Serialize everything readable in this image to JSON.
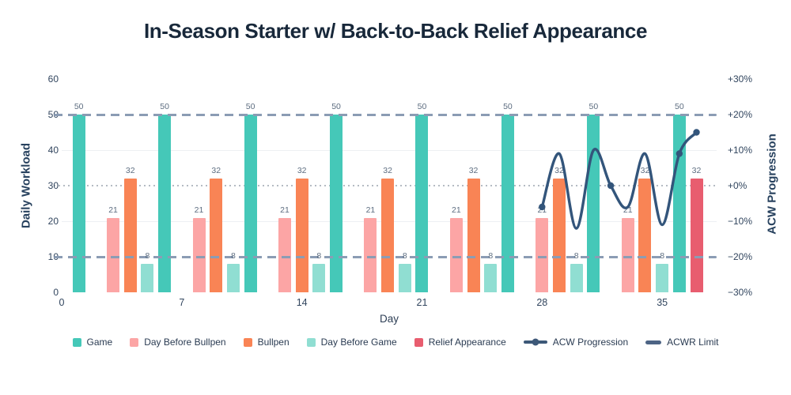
{
  "title": "In-Season Starter w/ Back-to-Back Relief Appearance",
  "chart_data": {
    "type": "bar",
    "title": "In-Season Starter w/ Back-to-Back Relief Appearance",
    "x_axis": {
      "label": "Day",
      "ticks": [
        0,
        7,
        14,
        21,
        28,
        35
      ],
      "range": [
        0,
        38
      ]
    },
    "y_left": {
      "label": "Daily Workload",
      "ticks": [
        0,
        10,
        20,
        30,
        40,
        50,
        60
      ],
      "range": [
        0,
        60
      ],
      "grid": "faint lines at 20 and 40"
    },
    "y_right": {
      "label": "ACW Progression",
      "ticks": [
        "+30%",
        "+20%",
        "+10%",
        "+0%",
        "−10%",
        "−20%",
        "−30%"
      ],
      "range": [
        -30,
        30
      ]
    },
    "bar_series": [
      {
        "name": "Game",
        "color": "#45c8b8",
        "value": 50,
        "days": [
          1,
          6,
          11,
          16,
          21,
          26,
          31,
          36
        ]
      },
      {
        "name": "Day Before Bullpen",
        "color": "#fca5a5",
        "value": 21,
        "days": [
          3,
          8,
          13,
          18,
          23,
          28,
          33
        ]
      },
      {
        "name": "Bullpen",
        "color": "#f98455",
        "value": 32,
        "days": [
          4,
          9,
          14,
          19,
          24,
          29,
          34
        ]
      },
      {
        "name": "Day Before Game",
        "color": "#90ded2",
        "value": 8,
        "days": [
          5,
          10,
          15,
          20,
          25,
          30,
          35
        ]
      },
      {
        "name": "Relief Appearance",
        "color": "#e85d6f",
        "value": 32,
        "days": [
          37
        ]
      }
    ],
    "bar_value_labels_shown": true,
    "line_series": {
      "name": "ACW Progression",
      "color": "#33557b",
      "axis": "right",
      "points": [
        {
          "day": 28,
          "pct": -6
        },
        {
          "day": 29,
          "pct": 9
        },
        {
          "day": 30,
          "pct": -12
        },
        {
          "day": 31,
          "pct": 10
        },
        {
          "day": 32,
          "pct": 0
        },
        {
          "day": 33,
          "pct": -6
        },
        {
          "day": 34,
          "pct": 9
        },
        {
          "day": 35,
          "pct": -11
        },
        {
          "day": 36,
          "pct": 9
        },
        {
          "day": 37,
          "pct": 15
        }
      ],
      "marker_days": [
        28,
        32,
        36,
        37
      ]
    },
    "reference_lines": [
      {
        "name": "ACWR Limit upper",
        "value_left": 50,
        "value_right": "+20%",
        "style": "dashed",
        "color": "#8b9cb4"
      },
      {
        "name": "ACWR Limit lower",
        "value_left": 10,
        "value_right": "−20%",
        "style": "dashed",
        "color": "#8b9cb4"
      },
      {
        "name": "Zero baseline",
        "value_left": 30,
        "value_right": "+0%",
        "style": "dotted",
        "color": "#b4bbc3"
      }
    ],
    "gridlines_left_values": [
      20,
      40
    ],
    "legend_position": "bottom"
  },
  "legend": [
    {
      "label": "Game",
      "swatch": "square",
      "color": "#45c8b8"
    },
    {
      "label": "Day Before Bullpen",
      "swatch": "square",
      "color": "#fca5a5"
    },
    {
      "label": "Bullpen",
      "swatch": "square",
      "color": "#f98455"
    },
    {
      "label": "Day Before Game",
      "swatch": "square",
      "color": "#90ded2"
    },
    {
      "label": "Relief Appearance",
      "swatch": "square",
      "color": "#e85d6f"
    },
    {
      "label": "ACW Progression",
      "swatch": "line-dot",
      "color": "#3d5878"
    },
    {
      "label": "ACWR Limit",
      "swatch": "dash",
      "color": "#4d6485"
    }
  ]
}
